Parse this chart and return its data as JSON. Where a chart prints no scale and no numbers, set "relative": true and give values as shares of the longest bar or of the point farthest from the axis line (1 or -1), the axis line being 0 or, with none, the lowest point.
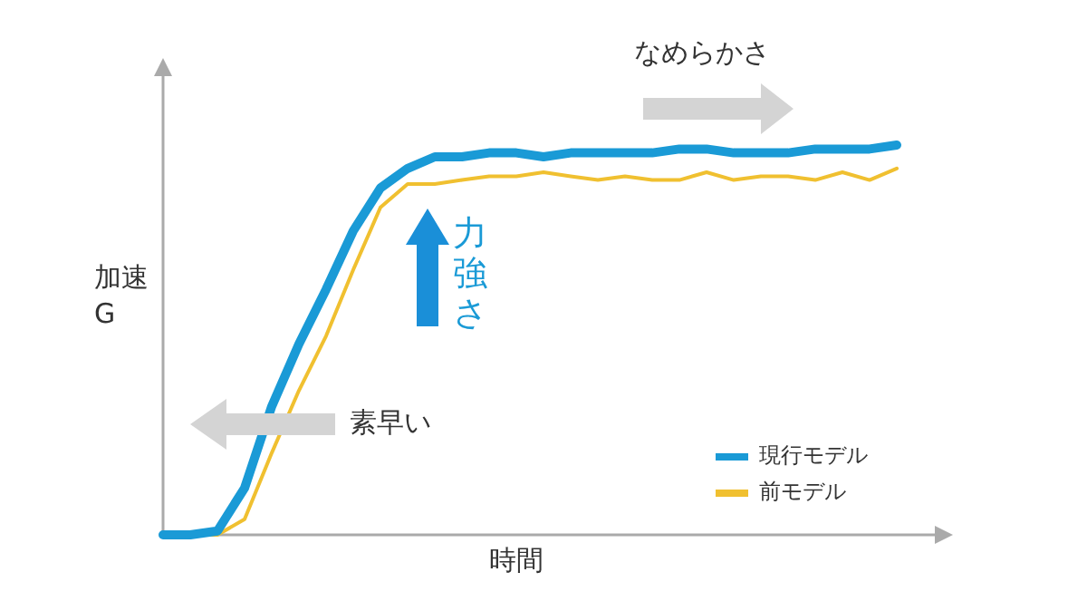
{
  "chart_data": {
    "type": "line",
    "relative": true,
    "xlabel": "時間",
    "ylabel": "加速G",
    "legend": "bottom right",
    "marker": "none",
    "line_style": "solid",
    "categories": [
      null,
      null,
      null,
      null,
      null,
      null,
      null,
      null,
      null,
      null,
      null,
      null,
      null,
      null,
      null,
      null,
      null,
      null,
      null,
      null,
      null,
      null,
      null,
      null,
      null,
      null,
      null,
      null
    ],
    "series": [
      {
        "name": "現行モデル",
        "color": "#1a9ad6",
        "values": [
          0,
          0,
          0.01,
          0.12,
          0.33,
          0.49,
          0.63,
          0.78,
          0.89,
          0.94,
          0.97,
          0.97,
          0.98,
          0.98,
          0.97,
          0.98,
          0.98,
          0.98,
          0.98,
          0.99,
          0.99,
          0.98,
          0.98,
          0.98,
          0.99,
          0.99,
          0.99,
          1.0
        ]
      },
      {
        "name": "前モデル",
        "color": "#f0c030",
        "values": [
          0,
          0,
          0,
          0.04,
          0.21,
          0.37,
          0.51,
          0.68,
          0.84,
          0.9,
          0.9,
          0.91,
          0.92,
          0.92,
          0.93,
          0.92,
          0.91,
          0.92,
          0.91,
          0.91,
          0.93,
          0.91,
          0.92,
          0.92,
          0.91,
          0.93,
          0.91,
          0.94
        ]
      }
    ],
    "annotations": [
      "なめらかさ",
      "力強さ",
      "素早い"
    ]
  }
}
